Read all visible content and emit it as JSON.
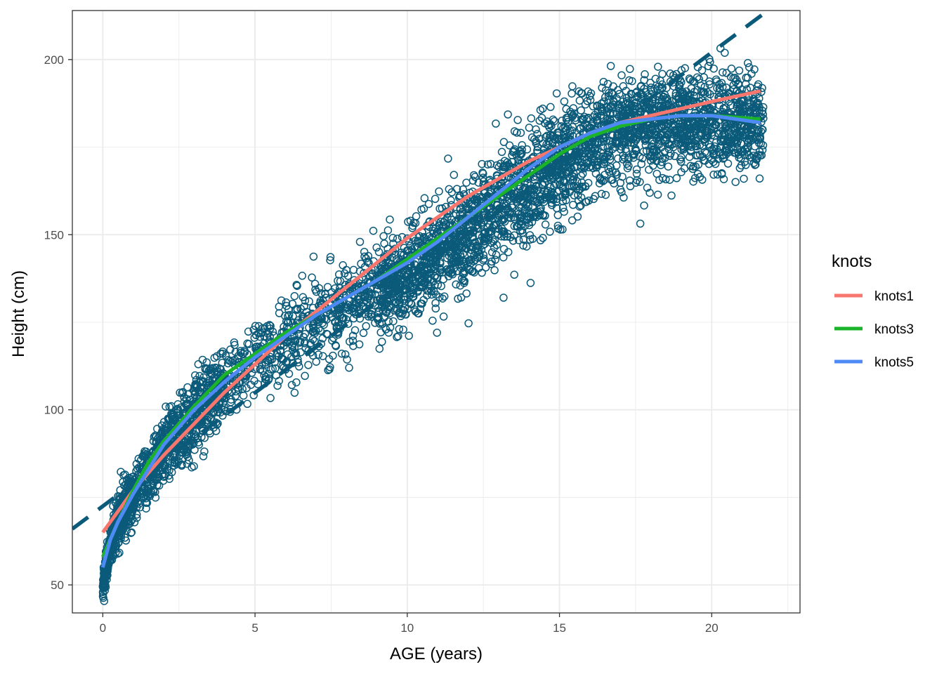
{
  "chart_data": {
    "type": "scatter",
    "xlabel": "AGE (years)",
    "ylabel": "Height (cm)",
    "xlim": [
      -1,
      22.9
    ],
    "ylim": [
      42,
      214
    ],
    "x_ticks": [
      0,
      5,
      10,
      15,
      20
    ],
    "y_ticks": [
      50,
      100,
      150,
      200
    ],
    "grid": true,
    "theme": "bw",
    "point_color": "#0b5a7a",
    "point_style": "open-circle",
    "scatter_model": {
      "description": "simulated points following observed height-vs-age band",
      "n_points": 4500,
      "x_range": [
        0,
        21.7
      ],
      "anchors_x": [
        0,
        0.25,
        0.5,
        1,
        2,
        3,
        4,
        5,
        6,
        7,
        8,
        9,
        10,
        11,
        12,
        13,
        14,
        15,
        16,
        17,
        18,
        19,
        20,
        21.7
      ],
      "anchors_y": [
        50,
        61,
        68,
        76,
        89,
        99,
        107,
        114,
        120,
        126,
        130,
        134,
        138,
        144,
        150,
        156,
        163,
        170,
        176,
        180,
        182,
        183,
        183,
        182
      ],
      "spread_sd": [
        2,
        3,
        3.5,
        4,
        5,
        5,
        5,
        5.5,
        6,
        6,
        6,
        6.5,
        7,
        7,
        7.5,
        8,
        8,
        8,
        7.5,
        7,
        7,
        7,
        7,
        7
      ]
    },
    "reference_line": {
      "style": "dashed",
      "color": "#0b5a7a",
      "x": [
        -1,
        22
      ],
      "y": [
        66,
        215
      ]
    },
    "series": [
      {
        "name": "knots1",
        "color": "#f8766d",
        "x": [
          0,
          1,
          2,
          3,
          4,
          5,
          6,
          7,
          8,
          9,
          10,
          11,
          12,
          13,
          14,
          15,
          16,
          17,
          18,
          19,
          20,
          21.6
        ],
        "y": [
          65,
          77,
          87,
          96,
          105,
          113,
          121,
          128,
          135,
          142,
          149,
          155,
          161,
          166,
          171,
          175,
          179,
          182,
          184,
          186,
          188,
          191
        ]
      },
      {
        "name": "knots3",
        "color": "#1ab32a",
        "x": [
          0,
          0.5,
          1,
          1.5,
          2,
          3,
          4,
          5,
          6,
          7,
          8,
          9,
          10,
          11,
          12,
          13,
          14,
          15,
          16,
          17,
          18,
          19,
          20,
          21.6
        ],
        "y": [
          58,
          68,
          77,
          85,
          91,
          101,
          110,
          116,
          122,
          127,
          132,
          137,
          143,
          149,
          155,
          161,
          167,
          173,
          178,
          181,
          183,
          184,
          184,
          183
        ]
      },
      {
        "name": "knots5",
        "color": "#4d8af5",
        "x": [
          0,
          0.25,
          0.5,
          1,
          1.5,
          2,
          3,
          4,
          5,
          6,
          7,
          8,
          9,
          10,
          11,
          12,
          13,
          14,
          15,
          16,
          17,
          18,
          19,
          20,
          21.6
        ],
        "y": [
          55,
          63,
          68,
          76,
          83,
          90,
          100,
          108,
          115,
          121,
          127,
          132,
          137,
          142,
          148,
          155,
          162,
          169,
          175,
          179,
          182,
          183,
          184,
          184,
          182
        ]
      }
    ],
    "legend": {
      "title": "knots",
      "placement": "right",
      "entries": [
        "knots1",
        "knots3",
        "knots5"
      ]
    }
  }
}
